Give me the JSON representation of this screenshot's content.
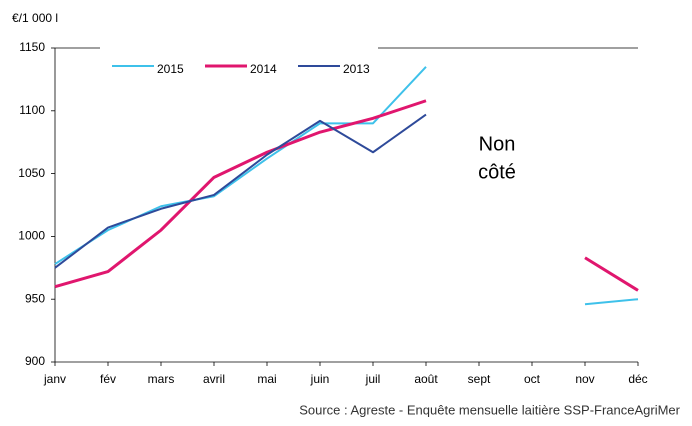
{
  "chart_data": {
    "type": "line",
    "y_label": "€/1 000 l",
    "categories": [
      "janv",
      "fév",
      "mars",
      "avril",
      "mai",
      "juin",
      "juil",
      "août",
      "sept",
      "oct",
      "nov",
      "déc"
    ],
    "series": [
      {
        "name": "2015",
        "color": "#3ec1ea",
        "values": [
          978,
          1005,
          1024,
          1032,
          1062,
          1090,
          1090,
          1135,
          null,
          null,
          946,
          950
        ]
      },
      {
        "name": "2014",
        "color": "#e0166e",
        "values": [
          960,
          972,
          1005,
          1047,
          1067,
          1083,
          1094,
          1108,
          null,
          null,
          983,
          957
        ]
      },
      {
        "name": "2013",
        "color": "#2e4a9a",
        "values": [
          975,
          1007,
          1022,
          1033,
          1065,
          1092,
          1067,
          1097,
          null,
          null,
          null,
          null
        ]
      }
    ],
    "ylim": [
      900,
      1150
    ],
    "yticks": [
      900,
      950,
      1000,
      1050,
      1100,
      1150
    ],
    "annotation": [
      "Non",
      "côté"
    ],
    "source": "Source : Agreste - Enquête mensuelle laitière SSP-FranceAgriMer"
  }
}
